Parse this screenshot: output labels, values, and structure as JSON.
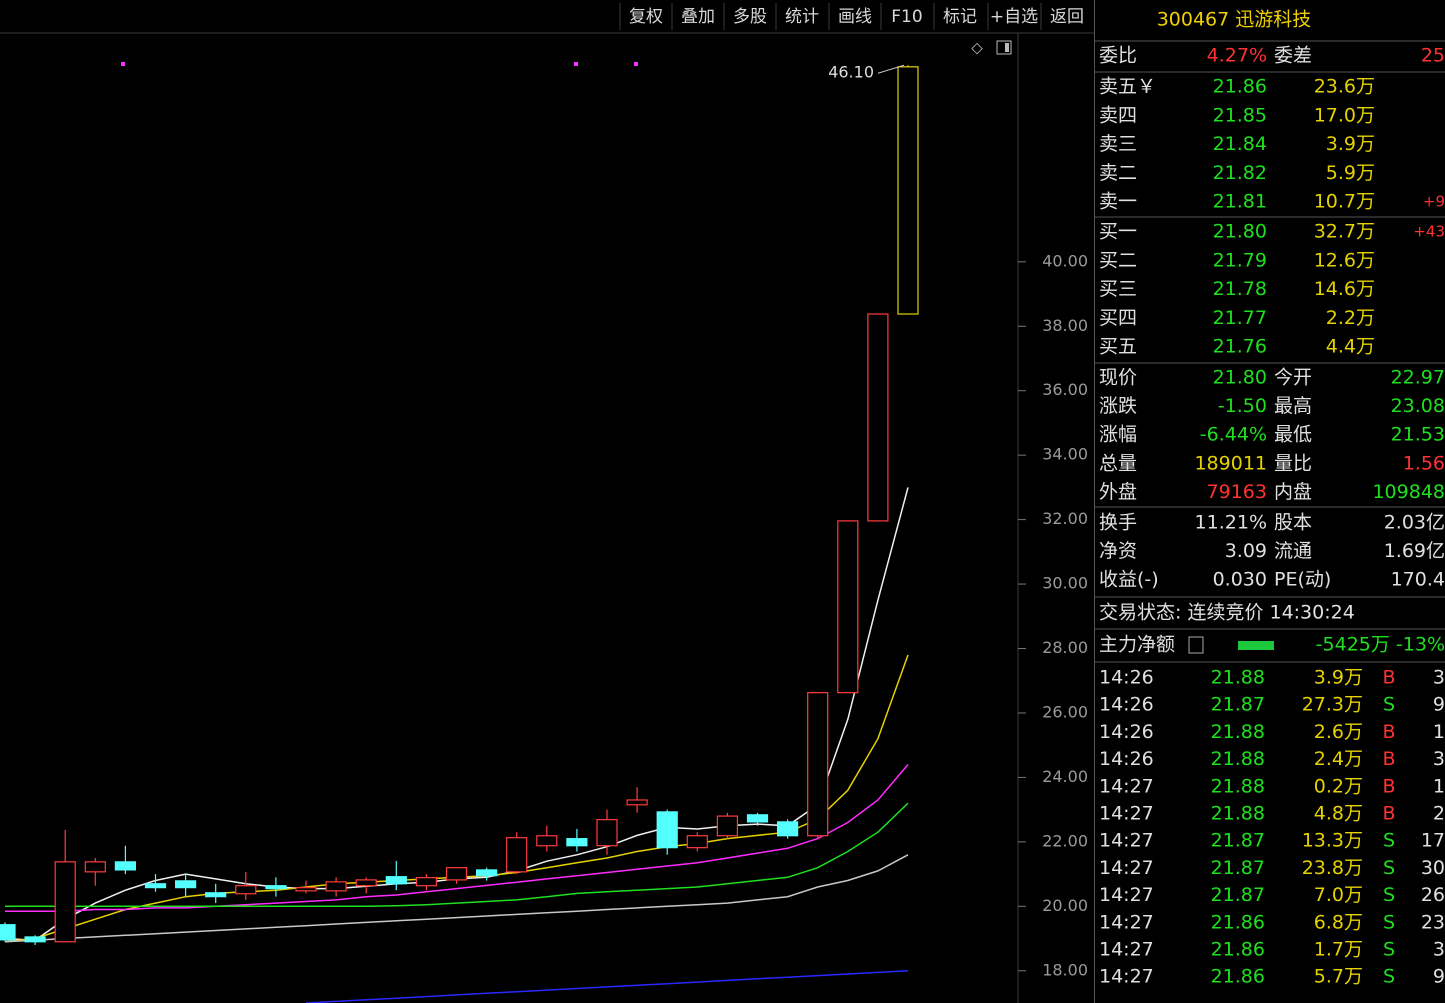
{
  "toolbar": [
    "复权",
    "叠加",
    "多股",
    "统计",
    "画线",
    "F10",
    "标记",
    "+自选",
    "返回"
  ],
  "chart_data": {
    "type": "candlestick",
    "open": [
      19.43,
      19.05,
      18.9,
      21.07,
      21.38,
      20.7,
      20.79,
      20.42,
      20.39,
      20.64,
      20.48,
      20.48,
      20.64,
      20.92,
      20.64,
      20.82,
      21.13,
      21.07,
      21.88,
      22.1,
      21.88,
      23.15,
      22.93,
      21.82,
      22.19,
      22.84,
      22.62,
      22.19,
      26.63,
      31.96,
      38.38
    ],
    "high": [
      19.5,
      19.1,
      22.37,
      21.5,
      21.88,
      21.0,
      21.0,
      20.7,
      21.07,
      20.9,
      20.8,
      20.9,
      20.9,
      21.41,
      21.0,
      21.2,
      21.2,
      22.3,
      22.5,
      22.4,
      23.0,
      23.7,
      23.0,
      22.3,
      22.9,
      22.9,
      22.7,
      26.63,
      31.96,
      38.38,
      46.1
    ],
    "low": [
      18.9,
      18.8,
      18.9,
      20.64,
      21.0,
      20.45,
      20.3,
      20.1,
      20.2,
      20.3,
      20.4,
      20.3,
      20.4,
      20.5,
      20.5,
      20.7,
      20.8,
      21.0,
      21.7,
      21.7,
      21.6,
      22.9,
      21.6,
      21.7,
      22.1,
      22.5,
      22.1,
      22.1,
      26.63,
      31.96,
      38.38
    ],
    "close": [
      18.96,
      18.9,
      21.38,
      21.38,
      21.13,
      20.58,
      20.58,
      20.3,
      20.64,
      20.55,
      20.58,
      20.76,
      20.82,
      20.7,
      20.89,
      21.2,
      20.95,
      22.13,
      22.19,
      21.88,
      22.69,
      23.3,
      21.82,
      22.19,
      22.8,
      22.62,
      22.19,
      26.63,
      31.96,
      38.38,
      46.05
    ],
    "up_color": "#ff3c3c",
    "down_color": "#54ffff",
    "last_color": "#e6d200",
    "annotation": {
      "text": "46.10"
    },
    "series": [
      {
        "color": "#f0f0f0",
        "values": [
          19.0,
          18.95,
          19.6,
          20.1,
          20.5,
          20.8,
          21.0,
          20.85,
          20.7,
          20.6,
          20.55,
          20.55,
          20.62,
          20.7,
          20.75,
          20.85,
          20.9,
          21.1,
          21.4,
          21.6,
          21.85,
          22.2,
          22.45,
          22.4,
          22.5,
          22.55,
          22.5,
          23.15,
          25.8,
          29.5,
          33.0
        ]
      },
      {
        "color": "#e6d200",
        "values": [
          18.9,
          19.0,
          19.3,
          19.6,
          19.9,
          20.1,
          20.3,
          20.4,
          20.45,
          20.5,
          20.6,
          20.7,
          20.75,
          20.8,
          20.85,
          20.9,
          20.95,
          21.05,
          21.2,
          21.35,
          21.5,
          21.7,
          21.85,
          21.95,
          22.1,
          22.2,
          22.3,
          22.7,
          23.6,
          25.2,
          27.8
        ]
      },
      {
        "color": "#ff2cff",
        "values": [
          19.85,
          19.85,
          19.85,
          19.9,
          19.9,
          19.95,
          19.95,
          20.0,
          20.05,
          20.1,
          20.15,
          20.2,
          20.3,
          20.35,
          20.45,
          20.55,
          20.65,
          20.75,
          20.85,
          20.95,
          21.05,
          21.15,
          21.25,
          21.35,
          21.5,
          21.65,
          21.8,
          22.1,
          22.6,
          23.3,
          24.4
        ]
      },
      {
        "color": "#1ee01e",
        "values": [
          20.0,
          20.0,
          20.0,
          20.0,
          20.0,
          20.0,
          20.0,
          20.0,
          20.0,
          20.0,
          20.0,
          20.0,
          20.0,
          20.02,
          20.05,
          20.1,
          20.15,
          20.2,
          20.3,
          20.4,
          20.45,
          20.5,
          20.55,
          20.6,
          20.7,
          20.8,
          20.9,
          21.2,
          21.7,
          22.3,
          23.2
        ]
      },
      {
        "color": "#c8c8c8",
        "values": [
          18.9,
          18.95,
          19.0,
          19.05,
          19.1,
          19.15,
          19.2,
          19.25,
          19.3,
          19.35,
          19.4,
          19.45,
          19.5,
          19.55,
          19.6,
          19.65,
          19.7,
          19.75,
          19.8,
          19.85,
          19.9,
          19.95,
          20.0,
          20.05,
          20.1,
          20.2,
          20.3,
          20.6,
          20.8,
          21.1,
          21.6
        ]
      },
      {
        "color": "#2828ff",
        "values": [
          null,
          null,
          null,
          null,
          null,
          null,
          null,
          null,
          null,
          null,
          17.0,
          17.05,
          17.1,
          17.15,
          17.2,
          17.25,
          17.3,
          17.35,
          17.4,
          17.45,
          17.5,
          17.55,
          17.6,
          17.65,
          17.7,
          17.75,
          17.8,
          17.85,
          17.9,
          17.95,
          18.0
        ]
      }
    ],
    "ylim": [
      17.0,
      47.1
    ],
    "yticks": [
      {
        "value": 18,
        "label": "18.00"
      },
      {
        "value": 20,
        "label": "20.00"
      },
      {
        "value": 22,
        "label": "22.00"
      },
      {
        "value": 24,
        "label": "24.00"
      },
      {
        "value": 26,
        "label": "26.00"
      },
      {
        "value": 28,
        "label": "28.00"
      },
      {
        "value": 30,
        "label": "30.00"
      },
      {
        "value": 32,
        "label": "32.00"
      },
      {
        "value": 34,
        "label": "34.00"
      },
      {
        "value": 36,
        "label": "36.00"
      },
      {
        "value": 38,
        "label": "38.00"
      },
      {
        "value": 40,
        "label": "40.00"
      }
    ]
  },
  "quote": {
    "title": "300467 迅游科技",
    "ratio": [
      "委比",
      "4.27%",
      "委差",
      "25"
    ],
    "asks": [
      [
        "卖五￥",
        "21.86",
        "23.6万",
        ""
      ],
      [
        "卖四",
        "21.85",
        "17.0万",
        ""
      ],
      [
        "卖三",
        "21.84",
        "3.9万",
        ""
      ],
      [
        "卖二",
        "21.82",
        "5.9万",
        ""
      ],
      [
        "卖一",
        "21.81",
        "10.7万",
        "+9"
      ]
    ],
    "bids": [
      [
        "买一",
        "21.80",
        "32.7万",
        "+43"
      ],
      [
        "买二",
        "21.79",
        "12.6万",
        ""
      ],
      [
        "买三",
        "21.78",
        "14.6万",
        ""
      ],
      [
        "买四",
        "21.77",
        "2.2万",
        ""
      ],
      [
        "买五",
        "21.76",
        "4.4万",
        ""
      ]
    ],
    "stats": [
      [
        "现价",
        "21.80",
        "今开",
        "22.97"
      ],
      [
        "涨跌",
        "-1.50",
        "最高",
        "23.08"
      ],
      [
        "涨幅",
        "-6.44%",
        "最低",
        "21.53"
      ],
      [
        "总量",
        "189011",
        "量比",
        "1.56"
      ],
      [
        "外盘",
        "79163",
        "内盘",
        "109848"
      ]
    ],
    "info": [
      [
        "换手",
        "11.21%",
        "股本",
        "2.03亿"
      ],
      [
        "净资",
        "3.09",
        "流通",
        "1.69亿"
      ],
      [
        "收益(-)",
        "0.030",
        "PE(动)",
        "170.4"
      ]
    ],
    "status": "交易状态: 连续竞价 14:30:24",
    "main_flow": {
      "label": "主力净额",
      "value": "-5425万 -13%"
    },
    "ticks": [
      [
        "14:26",
        "21.88",
        "3.9万",
        "B",
        "3"
      ],
      [
        "14:26",
        "21.87",
        "27.3万",
        "S",
        "9"
      ],
      [
        "14:26",
        "21.88",
        "2.6万",
        "B",
        "1"
      ],
      [
        "14:26",
        "21.88",
        "2.4万",
        "B",
        "3"
      ],
      [
        "14:27",
        "21.88",
        "0.2万",
        "B",
        "1"
      ],
      [
        "14:27",
        "21.88",
        "4.8万",
        "B",
        "2"
      ],
      [
        "14:27",
        "21.87",
        "13.3万",
        "S",
        "17"
      ],
      [
        "14:27",
        "21.87",
        "23.8万",
        "S",
        "30"
      ],
      [
        "14:27",
        "21.87",
        "7.0万",
        "S",
        "26"
      ],
      [
        "14:27",
        "21.86",
        "6.8万",
        "S",
        "23"
      ],
      [
        "14:27",
        "21.86",
        "1.7万",
        "S",
        "3"
      ],
      [
        "14:27",
        "21.86",
        "5.7万",
        "S",
        "9"
      ]
    ]
  }
}
